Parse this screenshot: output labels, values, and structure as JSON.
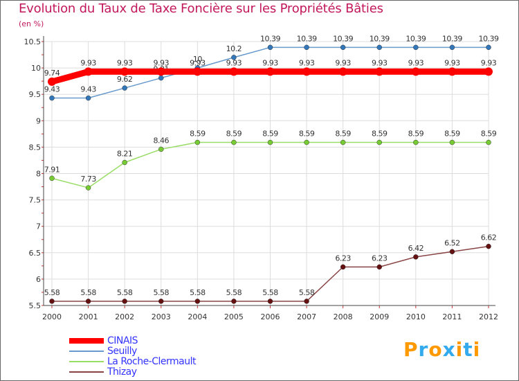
{
  "title": "Evolution du Taux de Taxe Foncière sur les Propriétés Bâties",
  "unit": "(en %)",
  "logo": {
    "letters": [
      "P",
      "r",
      "o",
      "x",
      "i",
      "t",
      "i"
    ],
    "colors": [
      "#ff9900",
      "#33aaee",
      "#ff9900",
      "#33aaee",
      "#ff9900",
      "#33aaee",
      "#ff9900"
    ]
  },
  "chart_data": {
    "type": "line",
    "title": "Evolution du Taux de Taxe Foncière sur les Propriétés Bâties",
    "ylabel": "(en %)",
    "xlabel": "",
    "x": [
      "2000",
      "2001",
      "2002",
      "2003",
      "2004",
      "2005",
      "2006",
      "2007",
      "2008",
      "2009",
      "2010",
      "2011",
      "2012"
    ],
    "ylim": [
      5.5,
      10.5
    ],
    "yticks": [
      "5.5",
      "6",
      "6.5",
      "7",
      "7.5",
      "8",
      "8.5",
      "9",
      "9.5",
      "10",
      "10.5"
    ],
    "grid": true,
    "legend_position": "bottom-left",
    "series": [
      {
        "name": "Seuilly",
        "color": "#6699cc",
        "marker": "#3377bb",
        "values": [
          9.43,
          9.43,
          9.62,
          9.81,
          10,
          10.2,
          10.39,
          10.39,
          10.39,
          10.39,
          10.39,
          10.39,
          10.39
        ],
        "labels": [
          "9.43",
          "9.43",
          "9.62",
          "9.81",
          "10",
          "10.2",
          "10.39",
          "10.39",
          "10.39",
          "10.39",
          "10.39",
          "10.39",
          "10.39"
        ]
      },
      {
        "name": "La Roche-Clermault",
        "color": "#99dd66",
        "marker": "#77cc33",
        "values": [
          7.91,
          7.73,
          8.21,
          8.46,
          8.59,
          8.59,
          8.59,
          8.59,
          8.59,
          8.59,
          8.59,
          8.59,
          8.59
        ],
        "labels": [
          "7.91",
          "7.73",
          "8.21",
          "8.46",
          "8.59",
          "8.59",
          "8.59",
          "8.59",
          "8.59",
          "8.59",
          "8.59",
          "8.59",
          "8.59"
        ]
      },
      {
        "name": "Thizay",
        "color": "#884444",
        "marker": "#661111",
        "values": [
          5.58,
          5.58,
          5.58,
          5.58,
          5.58,
          5.58,
          5.58,
          5.58,
          6.23,
          6.23,
          6.42,
          6.52,
          6.62
        ],
        "labels": [
          "5.58",
          "5.58",
          "5.58",
          "5.58",
          "5.58",
          "5.58",
          "5.58",
          "5.58",
          "6.23",
          "6.23",
          "6.42",
          "6.52",
          "6.62"
        ]
      },
      {
        "name": "CINAIS",
        "color": "#ff0000",
        "marker": "#ff0000",
        "thick": true,
        "values": [
          9.74,
          9.93,
          9.93,
          9.93,
          9.93,
          9.93,
          9.93,
          9.93,
          9.93,
          9.93,
          9.93,
          9.93,
          9.93
        ],
        "labels": [
          "9.74",
          "9.93",
          "9.93",
          "9.93",
          "9.93",
          "9.93",
          "9.93",
          "9.93",
          "9.93",
          "9.93",
          "9.93",
          "9.93",
          "9.93"
        ]
      }
    ],
    "legend": [
      "CINAIS",
      "Seuilly",
      "La Roche-Clermault",
      "Thizay"
    ]
  }
}
